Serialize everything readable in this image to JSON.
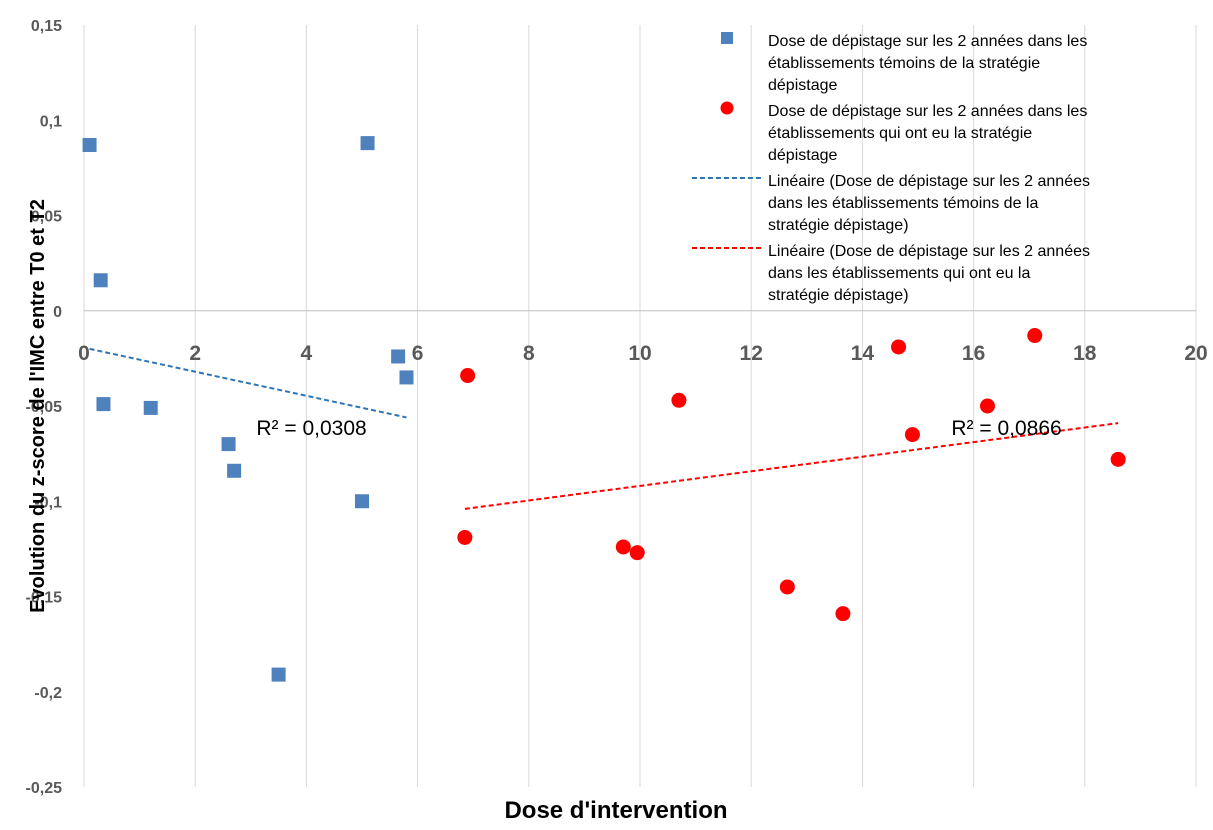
{
  "chart_data": {
    "type": "scatter",
    "xlabel": "Dose d'intervention",
    "ylabel": "Evolution du z-score de l'IMC entre T0 et T2",
    "xlim": [
      0,
      20
    ],
    "ylim": [
      -0.25,
      0.15
    ],
    "x_ticks": [
      "0",
      "2",
      "4",
      "6",
      "8",
      "10",
      "12",
      "14",
      "16",
      "18",
      "20"
    ],
    "y_ticks": [
      "0,15",
      "0,1",
      "0,05",
      "0",
      "-0,05",
      "-0,1",
      "-0,15",
      "-0,2",
      "-0,25"
    ],
    "grid": "vertical",
    "legend_position": "top-right",
    "series": [
      {
        "name": "Dose de dépistage sur les 2 années  dans les établissements témoins de la stratégie dépistage",
        "marker": "square",
        "color": "#4F81BD",
        "points": [
          [
            0.1,
            0.087
          ],
          [
            0.3,
            0.016
          ],
          [
            0.35,
            -0.049
          ],
          [
            1.2,
            -0.051
          ],
          [
            2.6,
            -0.07
          ],
          [
            2.7,
            -0.084
          ],
          [
            3.5,
            -0.191
          ],
          [
            5.0,
            -0.1
          ],
          [
            5.1,
            0.088
          ],
          [
            5.65,
            -0.024
          ],
          [
            5.8,
            -0.035
          ]
        ]
      },
      {
        "name": "Dose de dépistage sur les 2 années dans les établissements qui ont eu la stratégie dépistage",
        "marker": "circle",
        "color": "#FF0000",
        "points": [
          [
            6.85,
            -0.119
          ],
          [
            6.9,
            -0.034
          ],
          [
            9.7,
            -0.124
          ],
          [
            9.95,
            -0.127
          ],
          [
            10.7,
            -0.047
          ],
          [
            12.65,
            -0.145
          ],
          [
            13.65,
            -0.159
          ],
          [
            14.65,
            -0.019
          ],
          [
            14.9,
            -0.065
          ],
          [
            16.25,
            -0.05
          ],
          [
            17.1,
            -0.013
          ],
          [
            18.6,
            -0.078
          ]
        ]
      }
    ],
    "trendlines": [
      {
        "name": "Linéaire (Dose de dépistage sur les 2 années  dans les établissements témoins de la stratégie dépistage)",
        "color": "#2E75B6",
        "x": [
          0.1,
          5.8
        ],
        "y": [
          -0.02,
          -0.056
        ],
        "r2_label": "R² = 0,0308",
        "label_at": [
          3.1,
          -0.058
        ]
      },
      {
        "name": "Linéaire (Dose de dépistage sur les 2 années dans les établissements qui ont eu la stratégie dépistage)",
        "color": "#FF0000",
        "x": [
          6.85,
          18.6
        ],
        "y": [
          -0.104,
          -0.059
        ],
        "r2_label": "R² = 0,0866",
        "label_at": [
          15.6,
          -0.058
        ]
      }
    ]
  }
}
